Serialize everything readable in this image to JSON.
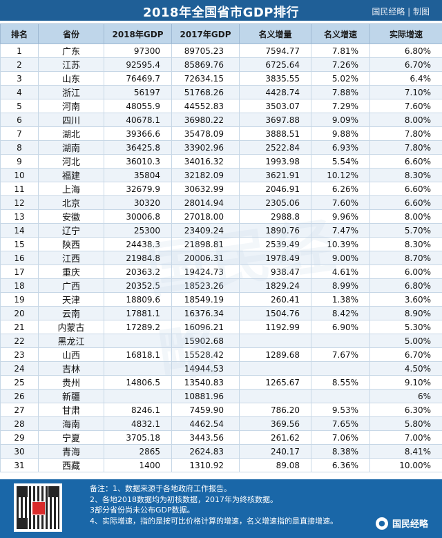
{
  "header": {
    "title": "2018年全国省市GDP排行",
    "brand": "国民经略 | 制图"
  },
  "table": {
    "columns": [
      "排名",
      "省份",
      "2018年GDP",
      "2017年GDP",
      "名义增量",
      "名义增速",
      "实际增速"
    ],
    "rows": [
      [
        "1",
        "广东",
        "97300",
        "89705.23",
        "7594.77",
        "7.81%",
        "6.80%"
      ],
      [
        "2",
        "江苏",
        "92595.4",
        "85869.76",
        "6725.64",
        "7.26%",
        "6.70%"
      ],
      [
        "3",
        "山东",
        "76469.7",
        "72634.15",
        "3835.55",
        "5.02%",
        "6.4%"
      ],
      [
        "4",
        "浙江",
        "56197",
        "51768.26",
        "4428.74",
        "7.88%",
        "7.10%"
      ],
      [
        "5",
        "河南",
        "48055.9",
        "44552.83",
        "3503.07",
        "7.29%",
        "7.60%"
      ],
      [
        "6",
        "四川",
        "40678.1",
        "36980.22",
        "3697.88",
        "9.09%",
        "8.00%"
      ],
      [
        "7",
        "湖北",
        "39366.6",
        "35478.09",
        "3888.51",
        "9.88%",
        "7.80%"
      ],
      [
        "8",
        "湖南",
        "36425.8",
        "33902.96",
        "2522.84",
        "6.93%",
        "7.80%"
      ],
      [
        "9",
        "河北",
        "36010.3",
        "34016.32",
        "1993.98",
        "5.54%",
        "6.60%"
      ],
      [
        "10",
        "福建",
        "35804",
        "32182.09",
        "3621.91",
        "10.12%",
        "8.30%"
      ],
      [
        "11",
        "上海",
        "32679.9",
        "30632.99",
        "2046.91",
        "6.26%",
        "6.60%"
      ],
      [
        "12",
        "北京",
        "30320",
        "28014.94",
        "2305.06",
        "7.60%",
        "6.60%"
      ],
      [
        "13",
        "安徽",
        "30006.8",
        "27018.00",
        "2988.8",
        "9.96%",
        "8.00%"
      ],
      [
        "14",
        "辽宁",
        "25300",
        "23409.24",
        "1890.76",
        "7.47%",
        "5.70%"
      ],
      [
        "15",
        "陕西",
        "24438.3",
        "21898.81",
        "2539.49",
        "10.39%",
        "8.30%"
      ],
      [
        "16",
        "江西",
        "21984.8",
        "20006.31",
        "1978.49",
        "9.00%",
        "8.70%"
      ],
      [
        "17",
        "重庆",
        "20363.2",
        "19424.73",
        "938.47",
        "4.61%",
        "6.00%"
      ],
      [
        "18",
        "广西",
        "20352.5",
        "18523.26",
        "1829.24",
        "8.99%",
        "6.80%"
      ],
      [
        "19",
        "天津",
        "18809.6",
        "18549.19",
        "260.41",
        "1.38%",
        "3.60%"
      ],
      [
        "20",
        "云南",
        "17881.1",
        "16376.34",
        "1504.76",
        "8.42%",
        "8.90%"
      ],
      [
        "21",
        "内蒙古",
        "17289.2",
        "16096.21",
        "1192.99",
        "6.90%",
        "5.30%"
      ],
      [
        "22",
        "黑龙江",
        "",
        "15902.68",
        "",
        "",
        "5.00%"
      ],
      [
        "23",
        "山西",
        "16818.1",
        "15528.42",
        "1289.68",
        "7.67%",
        "6.70%"
      ],
      [
        "24",
        "吉林",
        "",
        "14944.53",
        "",
        "",
        "4.50%"
      ],
      [
        "25",
        "贵州",
        "14806.5",
        "13540.83",
        "1265.67",
        "8.55%",
        "9.10%"
      ],
      [
        "26",
        "新疆",
        "",
        "10881.96",
        "",
        "",
        "6%"
      ],
      [
        "27",
        "甘肃",
        "8246.1",
        "7459.90",
        "786.20",
        "9.53%",
        "6.30%"
      ],
      [
        "28",
        "海南",
        "4832.1",
        "4462.54",
        "369.56",
        "7.65%",
        "5.80%"
      ],
      [
        "29",
        "宁夏",
        "3705.18",
        "3443.56",
        "261.62",
        "7.06%",
        "7.00%"
      ],
      [
        "30",
        "青海",
        "2865",
        "2624.83",
        "240.17",
        "8.38%",
        "8.41%"
      ],
      [
        "31",
        "西藏",
        "1400",
        "1310.92",
        "89.08",
        "6.36%",
        "10.00%"
      ]
    ]
  },
  "footer": {
    "notes": [
      "备注：1、数据来源于各地政府工作报告。",
      "2、各地2018数据均为初核数据，2017年为终核数据。",
      "3部分省份尚未公布GDP数据。",
      "4、实际增速，指的是按可比价格计算的增速，名义增速指的是直接增速。"
    ],
    "logo_text": "国民经略",
    "logo_icon": "wechat-bubble-icon"
  },
  "watermark": "国民经略",
  "colors": {
    "header_bg": "#1f5f97",
    "table_header_bg": "#bfd6ea",
    "footer_bg": "#1a67a8"
  }
}
